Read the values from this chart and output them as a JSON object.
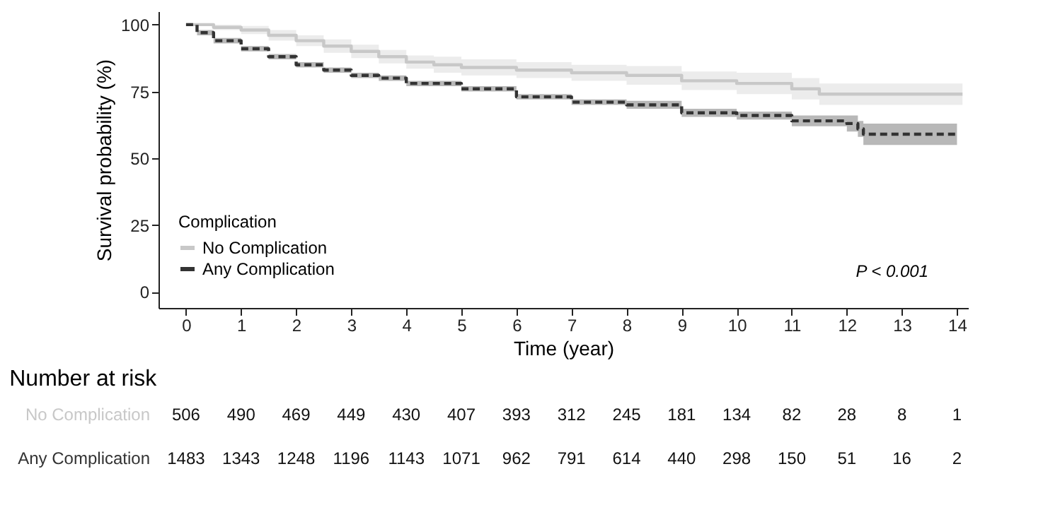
{
  "chart_data": [
    {
      "type": "step",
      "xlabel": "Time (year)",
      "ylabel": "Survival probability (%)",
      "legend_title": "Complication",
      "legend": "bottom left",
      "grid": false,
      "marker": "none",
      "xlim": [
        -0.5,
        14.2
      ],
      "ylim": [
        -6,
        105
      ],
      "xticks": [
        0,
        1,
        2,
        3,
        4,
        5,
        6,
        7,
        8,
        9,
        10,
        11,
        12,
        13,
        14
      ],
      "yticks": [
        0,
        25,
        50,
        75,
        100
      ],
      "annotations": [
        "P < 0.001"
      ],
      "series": [
        {
          "name": "No Complication",
          "color": "#c8c8c8",
          "line_style": "solid",
          "x": [
            0,
            0.5,
            1,
            1.5,
            2,
            2.5,
            3,
            3.5,
            4,
            4.5,
            5,
            6,
            7,
            8,
            9,
            10,
            11,
            11.5,
            14.1
          ],
          "values": [
            100,
            99,
            98,
            96,
            94,
            92,
            90,
            88,
            86,
            85,
            84,
            83,
            82,
            81,
            79,
            78,
            76,
            74,
            74
          ],
          "lower": [
            100,
            98,
            96.5,
            94,
            92,
            89.5,
            87.5,
            85.5,
            83.5,
            82,
            81,
            80,
            79,
            77.5,
            75.5,
            74,
            72,
            70,
            70
          ],
          "upper": [
            100,
            100,
            99.5,
            98,
            96,
            94.5,
            92.5,
            90.5,
            88.5,
            88,
            87,
            86,
            85,
            84.5,
            82.5,
            82,
            80,
            78,
            78
          ]
        },
        {
          "name": "Any Complication",
          "color": "#333333",
          "line_style": "dashed",
          "x": [
            0,
            0.2,
            0.5,
            1,
            1.5,
            2,
            2.5,
            3,
            3.5,
            4,
            5,
            6,
            7,
            8,
            9,
            10,
            11,
            12,
            12.2,
            12.3,
            14
          ],
          "values": [
            100,
            97,
            94,
            91,
            88,
            85,
            83,
            81,
            80,
            78,
            76,
            73,
            71,
            70,
            67,
            66,
            64,
            63,
            61,
            59,
            59
          ],
          "lower": [
            100,
            96,
            93,
            90,
            87,
            84,
            82,
            80,
            79,
            77,
            75,
            72,
            70,
            68.5,
            65.5,
            64.5,
            62,
            60,
            58,
            55,
            55
          ],
          "upper": [
            100,
            98,
            95,
            92,
            89,
            86,
            84,
            82,
            81,
            79,
            77,
            74,
            72,
            71.5,
            68.5,
            67.5,
            66,
            66,
            64,
            63,
            63
          ]
        }
      ]
    },
    {
      "type": "other",
      "title": "Number at risk",
      "y_categories": [
        "No Complication",
        "Any Complication"
      ],
      "colors": [
        "#c8c8c8",
        "#333333"
      ],
      "cell_labels": [
        [
          "506",
          "490",
          "469",
          "449",
          "430",
          "407",
          "393",
          "312",
          "245",
          "181",
          "134",
          "82",
          "28",
          "8",
          "1"
        ],
        [
          "1483",
          "1343",
          "1248",
          "1196",
          "1143",
          "1071",
          "962",
          "791",
          "614",
          "440",
          "298",
          "150",
          "51",
          "16",
          "2"
        ]
      ]
    }
  ]
}
